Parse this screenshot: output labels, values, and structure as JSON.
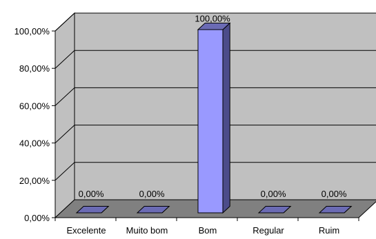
{
  "chart_data": {
    "type": "bar",
    "style": "3d-column",
    "categories": [
      "Excelente",
      "Muito bom",
      "Bom",
      "Regular",
      "Ruim"
    ],
    "values": [
      0,
      0,
      100,
      0,
      0
    ],
    "data_labels": [
      "0,00%",
      "0,00%",
      "100,00%",
      "0,00%",
      "0,00%"
    ],
    "y_ticks": [
      "0,00%",
      "20,00%",
      "40,00%",
      "60,00%",
      "80,00%",
      "100,00%"
    ],
    "ylim": [
      0,
      100
    ],
    "grid": true,
    "legend": "none"
  },
  "colors": {
    "wall": "#c0c0c0",
    "floor": "#808080",
    "bar_front": "#9999ff",
    "bar_side": "#4c4c8a",
    "bar_top": "#6b6bb4",
    "grid": "#000000"
  }
}
